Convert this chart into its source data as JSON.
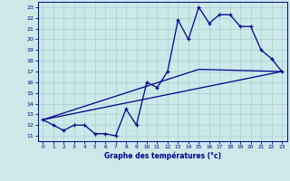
{
  "title": "Graphe des températures (°c)",
  "bg_color": "#cce8e8",
  "line_color": "#00008b",
  "xlim": [
    -0.5,
    23.5
  ],
  "ylim": [
    10.5,
    23.5
  ],
  "xticks": [
    0,
    1,
    2,
    3,
    4,
    5,
    6,
    7,
    8,
    9,
    10,
    11,
    12,
    13,
    14,
    15,
    16,
    17,
    18,
    19,
    20,
    21,
    22,
    23
  ],
  "yticks": [
    11,
    12,
    13,
    14,
    15,
    16,
    17,
    18,
    19,
    20,
    21,
    22,
    23
  ],
  "series1_x": [
    0,
    1,
    2,
    3,
    4,
    5,
    6,
    7,
    8,
    9,
    10,
    11,
    12,
    13,
    14,
    15,
    16,
    17,
    18,
    19,
    20,
    21,
    22,
    23
  ],
  "series1_y": [
    12.5,
    12.0,
    11.5,
    12.0,
    12.0,
    11.2,
    11.2,
    11.0,
    13.5,
    12.0,
    16.0,
    15.5,
    17.0,
    21.8,
    20.0,
    23.0,
    21.5,
    22.3,
    22.3,
    21.2,
    21.2,
    19.0,
    18.2,
    17.0
  ],
  "series2_x": [
    0,
    23
  ],
  "series2_y": [
    12.5,
    17.0
  ],
  "series3_x": [
    0,
    15,
    23
  ],
  "series3_y": [
    12.5,
    17.2,
    17.0
  ]
}
